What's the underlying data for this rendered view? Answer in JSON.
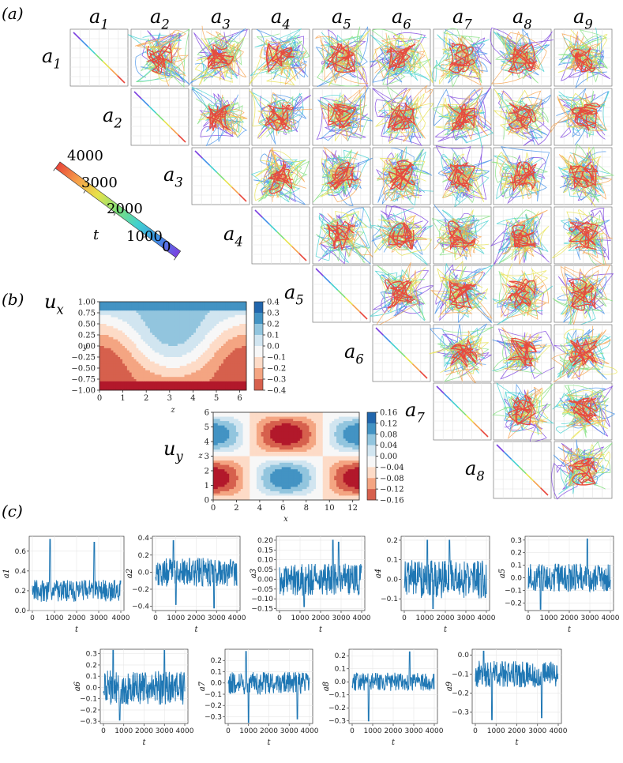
{
  "panel_labels": {
    "a": "(a)",
    "b": "(b)",
    "c": "(c)"
  },
  "pair_grid": {
    "col_labels": [
      "a1",
      "a2",
      "a3",
      "a4",
      "a5",
      "a6",
      "a7",
      "a8",
      "a9"
    ],
    "row_labels": [
      "a1",
      "a2",
      "a3",
      "a4",
      "a5",
      "a6",
      "a7",
      "a8"
    ],
    "colorbar": {
      "title": "t",
      "ticks": [
        "0",
        "1000",
        "2000",
        "3000",
        "4000"
      ],
      "colors": [
        "#7b3fe0",
        "#3f8ee8",
        "#40d0d0",
        "#7ee07a",
        "#e7e24a",
        "#f6a04a",
        "#e8453a"
      ]
    }
  },
  "chart_data": [
    {
      "type": "heatmap",
      "title": "u_x",
      "label_main": "u",
      "label_sub": "x",
      "xlabel": "z",
      "ylabel": "y",
      "xlim": [
        0,
        6.283
      ],
      "ylim": [
        -1,
        1
      ],
      "xticks": [
        "0",
        "1",
        "2",
        "3",
        "4",
        "5",
        "6"
      ],
      "yticks": [
        "1.00",
        "0.75",
        "0.50",
        "0.25",
        "0.00",
        "−0.25",
        "−0.50",
        "−0.75",
        "−1.00"
      ],
      "colorbar_ticks": [
        "0.4",
        "0.3",
        "0.2",
        "0.1",
        "0.0",
        "−0.1",
        "−0.2",
        "−0.3",
        "−0.4"
      ],
      "levels": [
        -0.4,
        -0.3,
        -0.2,
        -0.1,
        0,
        0.1,
        0.2,
        0.3,
        0.4
      ]
    },
    {
      "type": "heatmap",
      "title": "u_y",
      "label_main": "u",
      "label_sub": "y",
      "xlabel": "x",
      "ylabel": "z",
      "xlim": [
        0,
        12.566
      ],
      "ylim": [
        0,
        6.283
      ],
      "xticks": [
        "0",
        "2",
        "4",
        "6",
        "8",
        "10",
        "12"
      ],
      "yticks": [
        "6",
        "5",
        "4",
        "3",
        "2",
        "1",
        "0"
      ],
      "colorbar_ticks": [
        "0.16",
        "0.12",
        "0.08",
        "0.04",
        "0.00",
        "−0.04",
        "−0.08",
        "−0.12",
        "−0.16"
      ],
      "levels": [
        -0.16,
        -0.12,
        -0.08,
        -0.04,
        0,
        0.04,
        0.08,
        0.12,
        0.16
      ]
    },
    {
      "type": "line",
      "ylabel": "a1",
      "xlabel": "t",
      "xticks": [
        "0",
        "1000",
        "2000",
        "3000",
        "4000"
      ],
      "yticks": [
        "0.6",
        "0.4",
        "0.2",
        "0.0"
      ],
      "ylim": [
        0.0,
        0.75
      ],
      "base": 0.2,
      "amp": 0.08,
      "peaks": [
        [
          0.2,
          0.72
        ],
        [
          0.7,
          0.69
        ]
      ]
    },
    {
      "type": "line",
      "ylabel": "a2",
      "xlabel": "t",
      "xticks": [
        "0",
        "1000",
        "2000",
        "3000",
        "4000"
      ],
      "yticks": [
        "0.4",
        "0.2",
        "0.0",
        "−0.2",
        "−0.4"
      ],
      "ylim": [
        -0.45,
        0.42
      ],
      "base": 0.0,
      "amp": 0.12,
      "peaks": [
        [
          0.22,
          0.37
        ],
        [
          0.25,
          -0.38
        ],
        [
          0.72,
          -0.42
        ]
      ]
    },
    {
      "type": "line",
      "ylabel": "a3",
      "xlabel": "t",
      "xticks": [
        "0",
        "1000",
        "2000",
        "3000",
        "4000"
      ],
      "yticks": [
        "0.20",
        "0.15",
        "0.10",
        "0.05",
        "0.00",
        "−0.05",
        "−0.10",
        "−0.15"
      ],
      "ylim": [
        -0.16,
        0.22
      ],
      "base": 0.0,
      "amp": 0.06,
      "peaks": [
        [
          0.65,
          0.2
        ],
        [
          0.72,
          0.19
        ],
        [
          0.3,
          -0.14
        ]
      ]
    },
    {
      "type": "line",
      "ylabel": "a4",
      "xlabel": "t",
      "xticks": [
        "0",
        "1000",
        "2000",
        "3000",
        "4000"
      ],
      "yticks": [
        "0.2",
        "0.1",
        "0.0",
        "−0.1"
      ],
      "ylim": [
        -0.16,
        0.22
      ],
      "base": 0.0,
      "amp": 0.07,
      "peaks": [
        [
          0.28,
          0.2
        ],
        [
          0.55,
          0.2
        ],
        [
          0.35,
          -0.15
        ]
      ]
    },
    {
      "type": "line",
      "ylabel": "a5",
      "xlabel": "t",
      "xticks": [
        "0",
        "1000",
        "2000",
        "3000",
        "4000"
      ],
      "yticks": [
        "0.3",
        "0.2",
        "0.1",
        "0.0",
        "−0.1",
        "−0.2"
      ],
      "ylim": [
        -0.26,
        0.33
      ],
      "base": 0.0,
      "amp": 0.08,
      "peaks": [
        [
          0.72,
          0.31
        ],
        [
          0.15,
          -0.25
        ]
      ]
    },
    {
      "type": "line",
      "ylabel": "a6",
      "xlabel": "t",
      "xticks": [
        "0",
        "1000",
        "2000",
        "3000",
        "4000"
      ],
      "yticks": [
        "0.3",
        "0.2",
        "0.1",
        "0.0",
        "−0.1",
        "−0.2",
        "−0.3"
      ],
      "ylim": [
        -0.32,
        0.34
      ],
      "base": 0.0,
      "amp": 0.11,
      "peaks": [
        [
          0.12,
          0.33
        ],
        [
          0.75,
          0.33
        ],
        [
          0.2,
          -0.29
        ]
      ]
    },
    {
      "type": "line",
      "ylabel": "a7",
      "xlabel": "t",
      "xticks": [
        "0",
        "1000",
        "2000",
        "3000",
        "4000"
      ],
      "yticks": [
        "0.2",
        "0.1",
        "0.0",
        "−0.1",
        "−0.2",
        "−0.3"
      ],
      "ylim": [
        -0.36,
        0.3
      ],
      "base": 0.0,
      "amp": 0.07,
      "peaks": [
        [
          0.22,
          0.28
        ],
        [
          0.25,
          -0.35
        ],
        [
          0.85,
          -0.32
        ]
      ]
    },
    {
      "type": "line",
      "ylabel": "a8",
      "xlabel": "t",
      "xticks": [
        "0",
        "1000",
        "2000",
        "3000",
        "4000"
      ],
      "yticks": [
        "0.2",
        "0.1",
        "0.0",
        "−0.1",
        "−0.2",
        "−0.3"
      ],
      "ylim": [
        -0.32,
        0.25
      ],
      "base": 0.0,
      "amp": 0.05,
      "peaks": [
        [
          0.7,
          0.23
        ],
        [
          0.2,
          -0.3
        ]
      ]
    },
    {
      "type": "line",
      "ylabel": "a9",
      "xlabel": "t",
      "xticks": [
        "0",
        "1000",
        "2000",
        "3000",
        "4000"
      ],
      "yticks": [
        "0.0",
        "−0.1",
        "−0.2",
        "−0.3"
      ],
      "ylim": [
        -0.36,
        0.03
      ],
      "base": -0.1,
      "amp": 0.05,
      "peaks": [
        [
          0.2,
          -0.34
        ],
        [
          0.8,
          -0.33
        ],
        [
          0.1,
          0.02
        ]
      ]
    }
  ]
}
